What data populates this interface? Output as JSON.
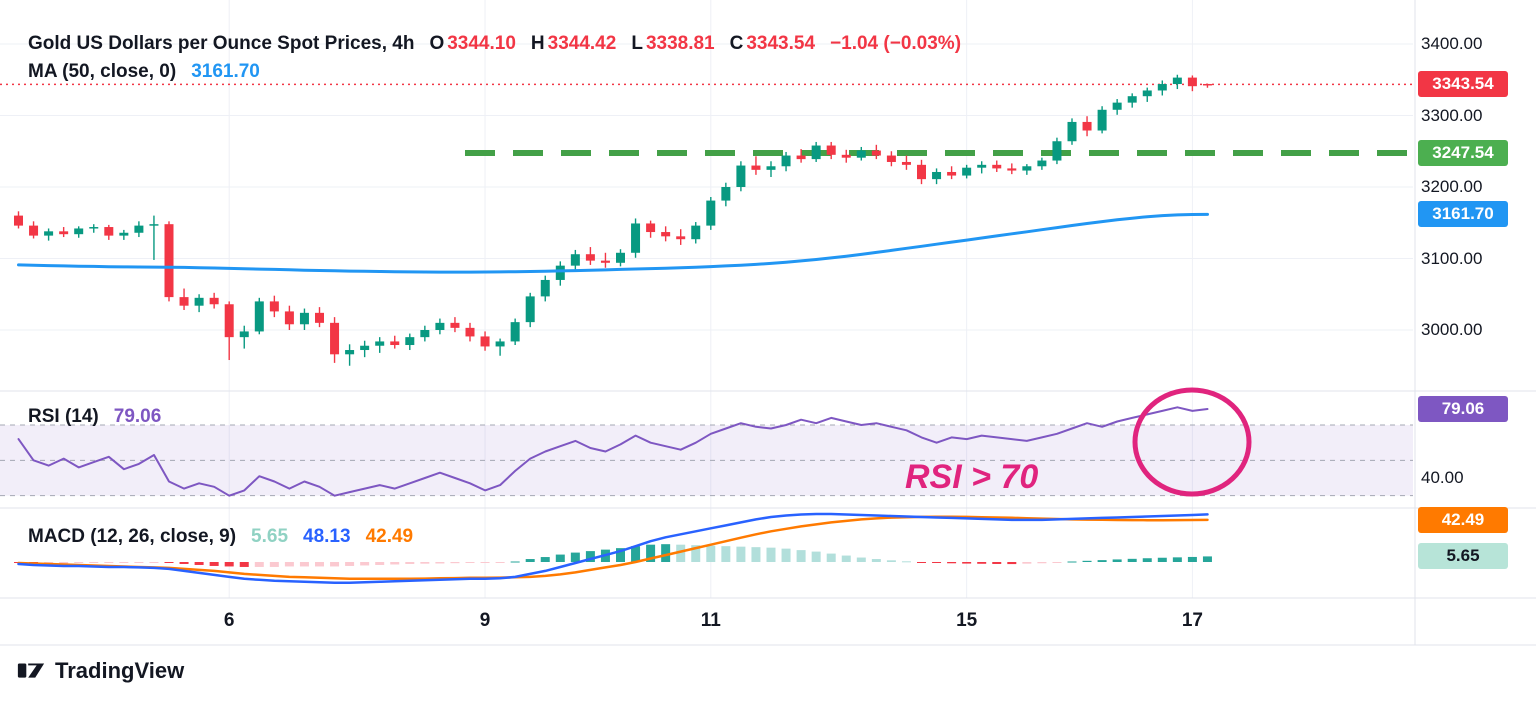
{
  "header": {
    "title": "Gold US Dollars per Ounce Spot Prices, 4h",
    "ohlc": [
      {
        "label": "O",
        "value": "3344.10"
      },
      {
        "label": "H",
        "value": "3344.42"
      },
      {
        "label": "L",
        "value": "3338.81"
      },
      {
        "label": "C",
        "value": "3343.54"
      }
    ],
    "change": "−1.04 (−0.03%)"
  },
  "ma_legend": {
    "label": "MA (50, close, 0)",
    "value": "3161.70"
  },
  "rsi_legend": {
    "label": "RSI (14)",
    "value": "79.06"
  },
  "macd_legend": {
    "label": "MACD (12, 26, close, 9)",
    "hist": "5.65",
    "macd": "48.13",
    "signal": "42.49"
  },
  "annotation": {
    "text": "RSI > 70"
  },
  "brand": {
    "name": "TradingView"
  },
  "price_axis": {
    "labels": [
      {
        "text": "3400.00",
        "value": 3400,
        "panel": "price"
      },
      {
        "text": "3300.00",
        "value": 3300,
        "panel": "price"
      },
      {
        "text": "3200.00",
        "value": 3200,
        "panel": "price"
      },
      {
        "text": "3100.00",
        "value": 3100,
        "panel": "price"
      },
      {
        "text": "3000.00",
        "value": 3000,
        "panel": "price"
      },
      {
        "text": "40.00",
        "value": 40,
        "panel": "rsi"
      }
    ],
    "badges": [
      {
        "text": "3343.54",
        "value": 3343.54,
        "panel": "price",
        "bg": "#f23645",
        "fg": "#ffffff"
      },
      {
        "text": "3247.54",
        "value": 3247.54,
        "panel": "price",
        "bg": "#4caf50",
        "fg": "#ffffff"
      },
      {
        "text": "3161.70",
        "value": 3161.7,
        "panel": "price",
        "bg": "#2196f3",
        "fg": "#ffffff"
      },
      {
        "text": "79.06",
        "value": 79.06,
        "panel": "rsi",
        "bg": "#7e57c2",
        "fg": "#ffffff"
      },
      {
        "text": "42.49",
        "value": 42.49,
        "panel": "macd",
        "bg": "#ff7a00",
        "fg": "#ffffff"
      },
      {
        "text": "5.65",
        "value": 5.65,
        "panel": "macd",
        "bg": "#b7e4d8",
        "fg": "#131722"
      }
    ]
  },
  "time_axis": {
    "labels": [
      {
        "text": "6",
        "index": 14
      },
      {
        "text": "9",
        "index": 31
      },
      {
        "text": "11",
        "index": 46
      },
      {
        "text": "15",
        "index": 63
      },
      {
        "text": "17",
        "index": 78
      }
    ]
  },
  "colors": {
    "up": "#089981",
    "down": "#f23645",
    "ma": "#2196f3",
    "macd_line": "#2962ff",
    "signal_line": "#ff7a00",
    "hist_grow_above": "#26a69a",
    "hist_fall_above": "#b2dfdb",
    "hist_fall_below": "#f23645",
    "hist_grow_below": "#fbc9d0",
    "hist_legend": "#90d2c3",
    "rsi": "#7e57c2",
    "rsi_band": "rgba(126,87,194,0.10)",
    "level_green": "#43a047",
    "annotation": "#e0247e",
    "grid": "#eef0f6",
    "separator": "#e0e3eb",
    "text": "#131722"
  },
  "chart_data": [
    {
      "type": "candlestick",
      "title": "Gold US Dollars per Ounce Spot Prices, 4h",
      "y_axis": {
        "ticks": [
          3400,
          3300,
          3200,
          3100,
          3000
        ],
        "range": [
          2950,
          3440
        ]
      },
      "levels": {
        "price_line": 3343.54,
        "resistance_dashed": 3247.54
      },
      "ohlc": [
        [
          3160,
          3166,
          3142,
          3146
        ],
        [
          3146,
          3152,
          3128,
          3132
        ],
        [
          3132,
          3142,
          3125,
          3138
        ],
        [
          3138,
          3144,
          3130,
          3134
        ],
        [
          3134,
          3145,
          3129,
          3142
        ],
        [
          3142,
          3148,
          3136,
          3144
        ],
        [
          3144,
          3147,
          3126,
          3132
        ],
        [
          3132,
          3140,
          3126,
          3136
        ],
        [
          3136,
          3152,
          3130,
          3146
        ],
        [
          3146,
          3160,
          3098,
          3148
        ],
        [
          3148,
          3152,
          3040,
          3046
        ],
        [
          3046,
          3058,
          3028,
          3034
        ],
        [
          3034,
          3050,
          3025,
          3045
        ],
        [
          3045,
          3052,
          3030,
          3036
        ],
        [
          3036,
          3040,
          2958,
          2990
        ],
        [
          2990,
          3006,
          2974,
          2998
        ],
        [
          2998,
          3045,
          2994,
          3040
        ],
        [
          3040,
          3048,
          3018,
          3026
        ],
        [
          3026,
          3034,
          3000,
          3008
        ],
        [
          3008,
          3030,
          3000,
          3024
        ],
        [
          3024,
          3032,
          3004,
          3010
        ],
        [
          3010,
          3018,
          2954,
          2966
        ],
        [
          2966,
          2980,
          2950,
          2972
        ],
        [
          2972,
          2985,
          2962,
          2978
        ],
        [
          2978,
          2990,
          2968,
          2984
        ],
        [
          2984,
          2992,
          2974,
          2979
        ],
        [
          2979,
          2995,
          2972,
          2990
        ],
        [
          2990,
          3006,
          2984,
          3000
        ],
        [
          3000,
          3016,
          2994,
          3010
        ],
        [
          3010,
          3018,
          2997,
          3003
        ],
        [
          3003,
          3010,
          2984,
          2991
        ],
        [
          2991,
          2998,
          2971,
          2977
        ],
        [
          2977,
          2988,
          2964,
          2984
        ],
        [
          2984,
          3016,
          2979,
          3011
        ],
        [
          3011,
          3052,
          3004,
          3047
        ],
        [
          3047,
          3076,
          3040,
          3070
        ],
        [
          3070,
          3096,
          3062,
          3090
        ],
        [
          3090,
          3112,
          3082,
          3106
        ],
        [
          3106,
          3116,
          3091,
          3097
        ],
        [
          3097,
          3108,
          3087,
          3094
        ],
        [
          3094,
          3113,
          3089,
          3108
        ],
        [
          3108,
          3156,
          3101,
          3149
        ],
        [
          3149,
          3153,
          3129,
          3137
        ],
        [
          3137,
          3145,
          3124,
          3131
        ],
        [
          3131,
          3141,
          3119,
          3127
        ],
        [
          3127,
          3151,
          3121,
          3146
        ],
        [
          3146,
          3186,
          3140,
          3181
        ],
        [
          3181,
          3206,
          3173,
          3200
        ],
        [
          3200,
          3236,
          3194,
          3230
        ],
        [
          3230,
          3243,
          3217,
          3224
        ],
        [
          3224,
          3236,
          3214,
          3229
        ],
        [
          3229,
          3249,
          3222,
          3244
        ],
        [
          3244,
          3253,
          3234,
          3239
        ],
        [
          3239,
          3263,
          3235,
          3258
        ],
        [
          3258,
          3263,
          3239,
          3245
        ],
        [
          3245,
          3252,
          3234,
          3241
        ],
        [
          3241,
          3256,
          3237,
          3251
        ],
        [
          3251,
          3259,
          3239,
          3244
        ],
        [
          3244,
          3250,
          3229,
          3235
        ],
        [
          3235,
          3244,
          3224,
          3231
        ],
        [
          3231,
          3238,
          3204,
          3211
        ],
        [
          3211,
          3226,
          3204,
          3221
        ],
        [
          3221,
          3229,
          3211,
          3216
        ],
        [
          3216,
          3231,
          3212,
          3227
        ],
        [
          3227,
          3236,
          3219,
          3231
        ],
        [
          3231,
          3237,
          3221,
          3226
        ],
        [
          3226,
          3233,
          3218,
          3223
        ],
        [
          3223,
          3232,
          3217,
          3229
        ],
        [
          3229,
          3241,
          3224,
          3237
        ],
        [
          3237,
          3269,
          3232,
          3264
        ],
        [
          3264,
          3296,
          3259,
          3291
        ],
        [
          3291,
          3299,
          3271,
          3279
        ],
        [
          3279,
          3313,
          3275,
          3308
        ],
        [
          3308,
          3323,
          3301,
          3318
        ],
        [
          3318,
          3331,
          3311,
          3327
        ],
        [
          3327,
          3339,
          3319,
          3335
        ],
        [
          3335,
          3349,
          3328,
          3344
        ],
        [
          3344,
          3357,
          3337,
          3353
        ],
        [
          3353,
          3356,
          3334,
          3341
        ],
        [
          3344.1,
          3344.42,
          3338.81,
          3343.54
        ]
      ],
      "ma": {
        "name": "MA (50, close, 0)",
        "last": 3161.7,
        "values": [
          3091,
          3090.5,
          3090,
          3089.6,
          3089.2,
          3088.9,
          3088.6,
          3088.3,
          3088.1,
          3088,
          3087.8,
          3087.5,
          3087.1,
          3086.7,
          3086.2,
          3085.7,
          3085.2,
          3084.7,
          3084.2,
          3083.7,
          3083.2,
          3082.8,
          3082.4,
          3082.1,
          3081.8,
          3081.5,
          3081.3,
          3081.1,
          3081,
          3081,
          3081,
          3081.1,
          3081.3,
          3081.5,
          3081.8,
          3082.2,
          3082.6,
          3083.1,
          3083.6,
          3084.1,
          3084.7,
          3085.3,
          3085.9,
          3086.5,
          3087.2,
          3087.9,
          3088.7,
          3089.6,
          3090.6,
          3091.8,
          3093.2,
          3094.8,
          3096.6,
          3098.6,
          3100.8,
          3103.2,
          3105.8,
          3108.5,
          3111.3,
          3114.2,
          3117.1,
          3120,
          3122.9,
          3125.8,
          3128.7,
          3131.6,
          3134.5,
          3137.4,
          3140.3,
          3143.2,
          3146.1,
          3148.9,
          3151.6,
          3154.1,
          3156.4,
          3158.4,
          3160,
          3161,
          3161.5,
          3161.7
        ]
      }
    },
    {
      "type": "line",
      "name": "RSI (14)",
      "last": 79.06,
      "overbought": 70,
      "midline": 50,
      "oversold": 30,
      "values": [
        62,
        50,
        47,
        51,
        46,
        49,
        52,
        45,
        48,
        53,
        38,
        34,
        37,
        35,
        30,
        33,
        41,
        38,
        34,
        38,
        35,
        30,
        32,
        34,
        36,
        34,
        37,
        40,
        43,
        40,
        37,
        33,
        36,
        44,
        51,
        55,
        58,
        61,
        57,
        55,
        59,
        64,
        60,
        58,
        56,
        60,
        65,
        68,
        71,
        69,
        68,
        70,
        73,
        71,
        74,
        72,
        70,
        71,
        69,
        67,
        63,
        60,
        63,
        62,
        64,
        63,
        62,
        61,
        63,
        65,
        68,
        71,
        69,
        72,
        74,
        76,
        78,
        80,
        78,
        79.06
      ]
    },
    {
      "type": "macd",
      "name": "MACD (12, 26, close, 9)",
      "macd_last": 48.13,
      "signal_last": 42.49,
      "histogram_last": 5.65,
      "macd": [
        -2,
        -3,
        -3.5,
        -4,
        -4,
        -4.5,
        -5,
        -5,
        -5.5,
        -6,
        -7,
        -9,
        -11,
        -13,
        -15,
        -17,
        -18,
        -19,
        -19.5,
        -20,
        -20.5,
        -21,
        -21,
        -20.5,
        -20,
        -19.5,
        -19,
        -18.5,
        -18,
        -17.5,
        -17,
        -17,
        -16.5,
        -15,
        -12,
        -9,
        -5,
        -1,
        3,
        7,
        11,
        16,
        21,
        25,
        28,
        31,
        34,
        37,
        40,
        43,
        45.5,
        47,
        48,
        48.5,
        48.5,
        48,
        47.5,
        47,
        46.5,
        46,
        45.5,
        45,
        44.5,
        44,
        43.5,
        43,
        42.5,
        42.5,
        42.5,
        43,
        43.5,
        44,
        44.5,
        45,
        45.5,
        46,
        46.5,
        47,
        47.5,
        48.13
      ],
      "signal": [
        -1,
        -1.5,
        -2,
        -2.5,
        -3,
        -3.5,
        -4,
        -4.5,
        -5,
        -5.5,
        -6,
        -7,
        -8,
        -9,
        -10.5,
        -12,
        -13,
        -14,
        -15,
        -15.5,
        -16,
        -16.5,
        -17,
        -17,
        -17,
        -17,
        -17,
        -16.8,
        -16.5,
        -16.3,
        -16,
        -16,
        -15.8,
        -15.5,
        -15,
        -14,
        -12.5,
        -10.5,
        -8,
        -5.5,
        -3,
        0,
        3.5,
        7,
        10.5,
        14,
        17.5,
        21,
        24.5,
        28,
        31,
        33.5,
        36,
        38,
        40,
        41.5,
        43,
        44,
        44.8,
        45.3,
        45.6,
        45.8,
        45.8,
        45.6,
        45.3,
        45,
        44.6,
        44.2,
        43.8,
        43.4,
        43,
        42.8,
        42.6,
        42.4,
        42.3,
        42.2,
        42.2,
        42.3,
        42.4,
        42.48
      ]
    }
  ]
}
